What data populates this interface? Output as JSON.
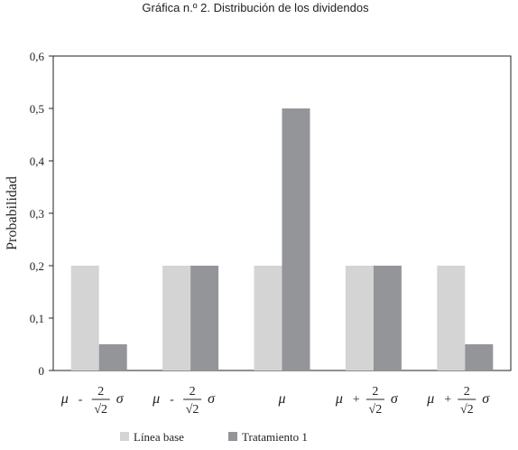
{
  "chart_data": {
    "type": "bar",
    "title": "Gráfica n.º 2. Distribución de los dividendos",
    "xlabel": "",
    "ylabel": "Probabilidad",
    "ylim": [
      0,
      0.6
    ],
    "yticks": [
      {
        "value": 0,
        "label": "0"
      },
      {
        "value": 0.1,
        "label": "0,1"
      },
      {
        "value": 0.2,
        "label": "0,2"
      },
      {
        "value": 0.3,
        "label": "0,3"
      },
      {
        "value": 0.4,
        "label": "0,4"
      },
      {
        "value": 0.5,
        "label": "0,5"
      },
      {
        "value": 0.6,
        "label": "0,6"
      }
    ],
    "categories": [
      {
        "mu": "μ",
        "op": "-",
        "num": "2",
        "den": "√2",
        "sigma": "σ"
      },
      {
        "mu": "μ",
        "op": "-",
        "num": "2",
        "den": "√2",
        "sigma": "σ"
      },
      {
        "mu": "μ",
        "op": "",
        "num": "",
        "den": "",
        "sigma": ""
      },
      {
        "mu": "μ",
        "op": "+",
        "num": "2",
        "den": "√2",
        "sigma": "σ"
      },
      {
        "mu": "μ",
        "op": "+",
        "num": "2",
        "den": "√2",
        "sigma": "σ"
      }
    ],
    "series": [
      {
        "name": "Línea base",
        "color": "#d4d4d4",
        "values": [
          0.2,
          0.2,
          0.2,
          0.2,
          0.2
        ]
      },
      {
        "name": "Tratamiento 1",
        "color": "#939598",
        "values": [
          0.05,
          0.2,
          0.5,
          0.2,
          0.05
        ]
      }
    ],
    "grid": false,
    "legend": "bottom-center"
  }
}
